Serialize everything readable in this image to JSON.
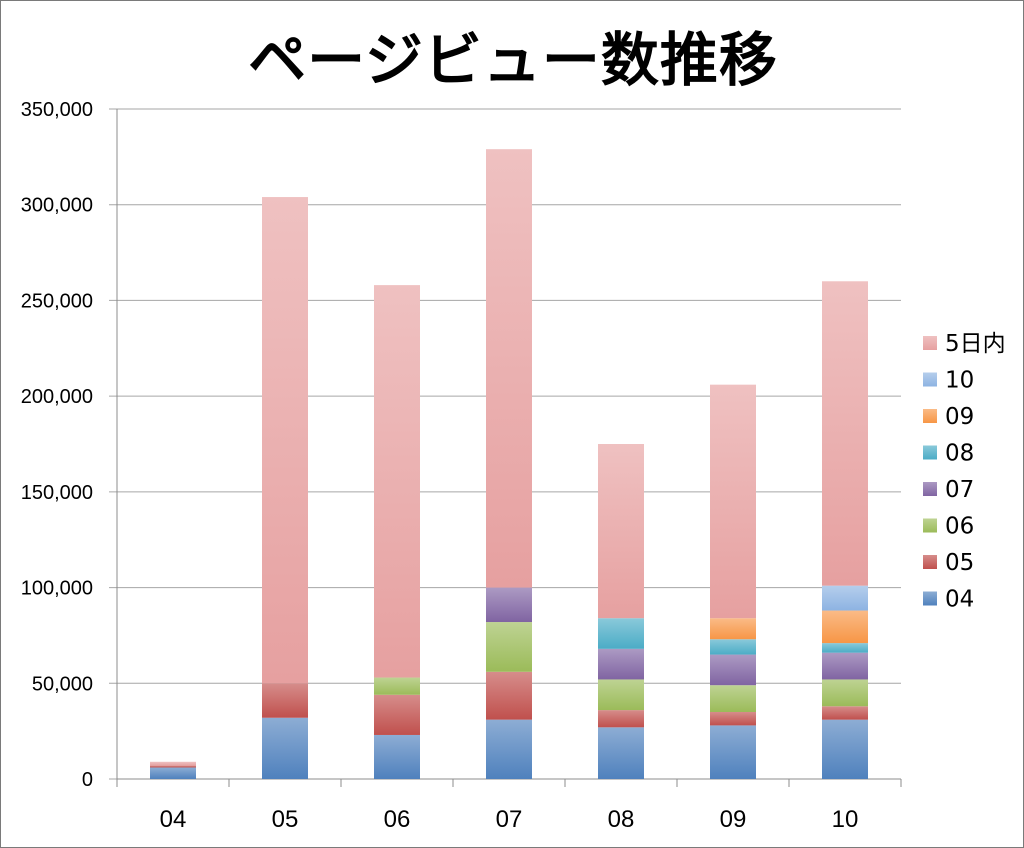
{
  "chart_data": {
    "type": "bar",
    "stacked": true,
    "title": "ページビュー数推移",
    "xlabel": "",
    "ylabel": "",
    "ylim": [
      0,
      350000
    ],
    "yticks": [
      0,
      50000,
      100000,
      150000,
      200000,
      250000,
      300000,
      350000
    ],
    "ytick_labels": [
      "0",
      "50,000",
      "100,000",
      "150,000",
      "200,000",
      "250,000",
      "300,000",
      "350,000"
    ],
    "grid": true,
    "legend_position": "right",
    "categories": [
      "04",
      "05",
      "06",
      "07",
      "08",
      "09",
      "10"
    ],
    "series": [
      {
        "name": "04",
        "color": "#4f81bd",
        "values": [
          6000,
          32000,
          23000,
          31000,
          27000,
          28000,
          31000
        ]
      },
      {
        "name": "05",
        "color": "#c0504d",
        "values": [
          1000,
          18000,
          21000,
          25000,
          9000,
          7000,
          7000
        ]
      },
      {
        "name": "06",
        "color": "#9bbb59",
        "values": [
          0,
          0,
          9000,
          26000,
          16000,
          14000,
          14000
        ]
      },
      {
        "name": "07",
        "color": "#8064a2",
        "values": [
          0,
          0,
          0,
          18000,
          16000,
          16000,
          14000
        ]
      },
      {
        "name": "08",
        "color": "#4bacc6",
        "values": [
          0,
          0,
          0,
          0,
          16000,
          8000,
          5000
        ]
      },
      {
        "name": "09",
        "color": "#f79646",
        "values": [
          0,
          0,
          0,
          0,
          0,
          11000,
          17000
        ]
      },
      {
        "name": "10",
        "color": "#8db3e2",
        "values": [
          0,
          0,
          0,
          0,
          0,
          0,
          13000
        ]
      },
      {
        "name": "5日内",
        "color": "#e6a0a0",
        "values": [
          2000,
          254000,
          205000,
          229000,
          91000,
          122000,
          159000
        ]
      }
    ]
  }
}
